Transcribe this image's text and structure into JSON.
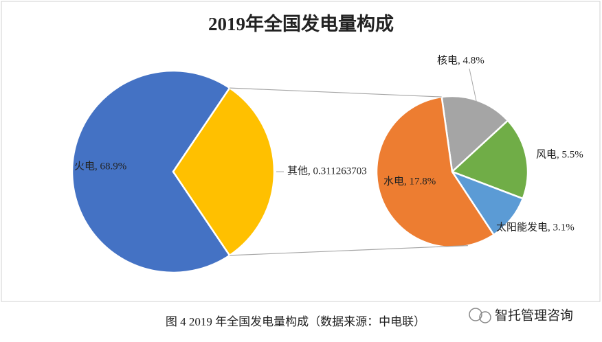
{
  "chart_data": {
    "type": "pie",
    "title": "2019年全国发电量构成",
    "pies": [
      {
        "values": [
          68.9,
          31.1263703
        ],
        "labels": [
          "火电, 68.9%",
          "其他, 0.311263703"
        ],
        "colors": [
          "#4472c4",
          "#ffc000"
        ]
      },
      {
        "values": [
          4.8,
          5.5,
          3.1,
          17.8
        ],
        "labels": [
          "核电, 4.8%",
          "风电, 5.5%",
          "太阳能发电, 3.1%",
          "水电, 17.8%"
        ],
        "colors": [
          "#a5a5a5",
          "#70ad47",
          "#5b9bd5",
          "#ed7d31"
        ]
      }
    ]
  },
  "caption": "图  4 2019 年全国发电量构成（数据来源：中电联）",
  "watermark": "智托管理咨询"
}
